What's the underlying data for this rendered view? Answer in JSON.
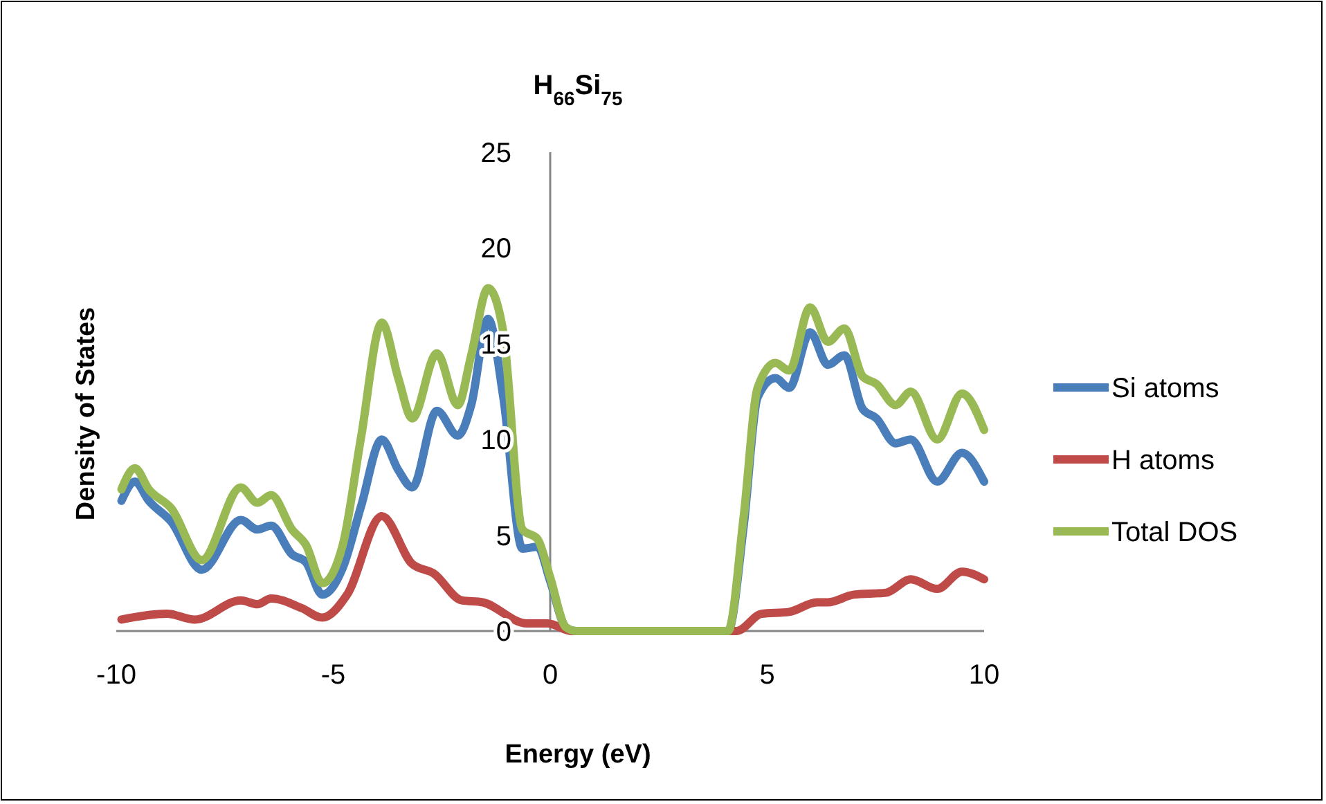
{
  "chart_data": {
    "type": "line",
    "title": "H$_{66}$Si$_{75}$",
    "xlabel": "Energy (eV)",
    "ylabel": "Density of States",
    "xlim": [
      -10,
      10
    ],
    "xticks": [
      -10,
      -5,
      0,
      5,
      10
    ],
    "ylim": [
      0,
      25
    ],
    "yticks": [
      0,
      5,
      10,
      15,
      20,
      25
    ],
    "grid": false,
    "legend": "right",
    "marker": "none",
    "line_style": "solid",
    "series": [
      {
        "name": "Si atoms",
        "color": "#4a7ebb",
        "x": [
          -9.88,
          -9.57,
          -9.25,
          -8.73,
          -8.03,
          -7.13,
          -6.75,
          -6.43,
          -5.95,
          -5.63,
          -5.25,
          -4.78,
          -4.36,
          -3.88,
          -3.5,
          -3.18,
          -2.61,
          -2.13,
          -1.82,
          -1.43,
          -1.08,
          -0.64,
          -0.29,
          0,
          0.36,
          0.6,
          4.1,
          4.46,
          4.78,
          5.19,
          5.51,
          5.99,
          6.4,
          6.78,
          7.2,
          7.52,
          7.96,
          8.31,
          8.92,
          9.49,
          10
        ],
        "values": [
          6.8,
          7.8,
          6.8,
          5.7,
          3.2,
          5.8,
          5.3,
          5.5,
          4,
          3.6,
          1.9,
          3.3,
          6.5,
          10,
          8.4,
          7.5,
          11.5,
          10.2,
          11.8,
          16.3,
          12.2,
          4.3,
          4.4,
          2.6,
          0.2,
          0,
          0,
          5.5,
          12.2,
          13.2,
          12.7,
          15.6,
          13.9,
          14.4,
          11.6,
          11.1,
          9.8,
          10,
          7.8,
          9.3,
          7.8
        ]
      },
      {
        "name": "H atoms",
        "color": "#be4b48",
        "x": [
          -9.88,
          -8.83,
          -8.19,
          -7.13,
          -6.75,
          -6.43,
          -5.73,
          -5.25,
          -4.68,
          -3.88,
          -3.18,
          -2.68,
          -2.04,
          -1.56,
          -0.54,
          -0.06,
          0.5,
          4.3,
          4.87,
          5.51,
          6.15,
          6.4,
          7,
          7.74,
          8.31,
          8.92,
          9.49,
          10
        ],
        "values": [
          0.6,
          0.9,
          0.6,
          1.6,
          1.4,
          1.7,
          1.2,
          0.7,
          1.9,
          6,
          3.5,
          3,
          1.6,
          1.5,
          0.4,
          0.4,
          0,
          0,
          0.9,
          1,
          1.5,
          1.5,
          1.9,
          2,
          2.7,
          2.2,
          3.1,
          2.7
        ]
      },
      {
        "name": "Total DOS",
        "color": "#98b954",
        "x": [
          -9.88,
          -9.57,
          -9.25,
          -8.73,
          -8.03,
          -7.13,
          -6.75,
          -6.43,
          -5.95,
          -5.63,
          -5.25,
          -4.78,
          -4.36,
          -3.88,
          -3.5,
          -3.18,
          -2.61,
          -2.13,
          -1.82,
          -1.43,
          -1.08,
          -0.64,
          -0.29,
          0,
          0.36,
          0.6,
          4.1,
          4.46,
          4.78,
          5.19,
          5.51,
          5.99,
          6.4,
          6.78,
          7.2,
          7.52,
          7.96,
          8.31,
          8.92,
          9.49,
          10
        ],
        "values": [
          7.4,
          8.5,
          7.4,
          6.4,
          3.7,
          7.5,
          6.7,
          7.1,
          5.3,
          4.5,
          2.5,
          4.5,
          10.1,
          16.1,
          13.2,
          11.1,
          14.5,
          11.8,
          14.4,
          17.9,
          15.6,
          5.3,
          4.8,
          2.8,
          0.2,
          0,
          0,
          6,
          12.7,
          14,
          13.6,
          16.9,
          15.1,
          15.8,
          13.3,
          12.9,
          11.8,
          12.5,
          10,
          12.4,
          10.5
        ]
      }
    ]
  }
}
